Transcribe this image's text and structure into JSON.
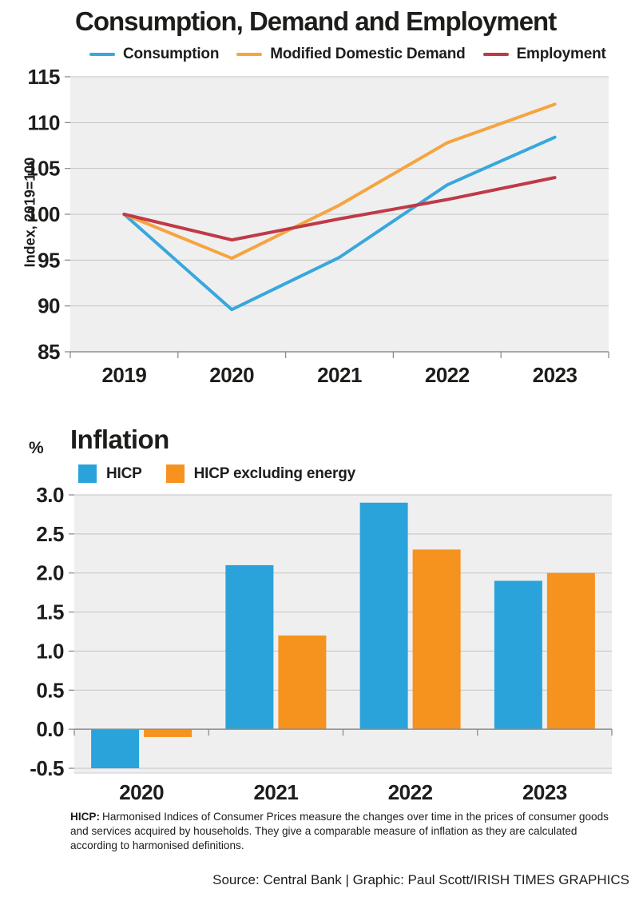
{
  "chart_data": [
    {
      "type": "line",
      "title": "Consumption, Demand and Employment",
      "ylabel": "Index, 2019=100",
      "x": [
        "2019",
        "2020",
        "2021",
        "2022",
        "2023"
      ],
      "y_ticks": [
        "115",
        "110",
        "105",
        "100",
        "95",
        "90",
        "85"
      ],
      "ylim": [
        85,
        115
      ],
      "grid": true,
      "legend_position": "top",
      "series": [
        {
          "name": "Consumption",
          "color": "#38a7dc",
          "values": [
            100,
            89.6,
            95.3,
            103.2,
            108.4
          ]
        },
        {
          "name": "Modified Domestic Demand",
          "color": "#f6a440",
          "values": [
            100,
            95.2,
            101,
            107.8,
            112
          ]
        },
        {
          "name": "Employment",
          "color": "#bf3a47",
          "values": [
            100,
            97.2,
            99.5,
            101.6,
            104
          ]
        }
      ]
    },
    {
      "type": "bar",
      "title": "Inflation",
      "ylabel": "%",
      "categories": [
        "2020",
        "2021",
        "2022",
        "2023"
      ],
      "y_ticks": [
        "3.0",
        "2.5",
        "2.0",
        "1.5",
        "1.0",
        "0.5",
        "0.0",
        "-0.5"
      ],
      "ylim": [
        -0.5,
        3.0
      ],
      "grid": true,
      "legend_position": "top",
      "series": [
        {
          "name": "HICP",
          "color": "#2aa3db",
          "values": [
            -0.5,
            2.1,
            2.9,
            1.9
          ]
        },
        {
          "name": "HICP excluding energy",
          "color": "#f6921e",
          "values": [
            -0.1,
            1.2,
            2.3,
            2.0
          ]
        }
      ]
    }
  ],
  "footnote": {
    "term": "HICP:",
    "text": "Harmonised Indices of Consumer Prices measure the changes over time in the prices of consumer goods and services acquired by households. They give a comparable measure of inflation as they are calculated according to harmonised definitions."
  },
  "source": {
    "text": "Source: Central Bank | Graphic: Paul Scott/IRISH TIMES GRAPHICS"
  },
  "colors": {
    "plot_bg": "#efeff0",
    "gridline": "#c3c3c3",
    "axis": "#8d8d8d",
    "text": "#1d1d1b"
  }
}
